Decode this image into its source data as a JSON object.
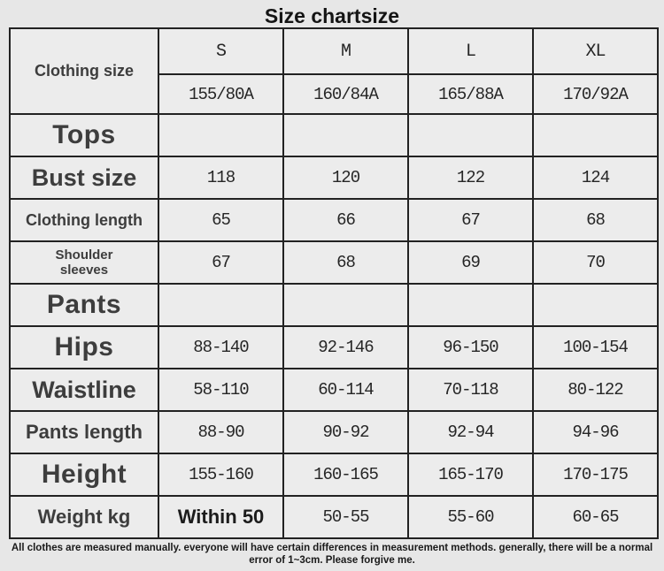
{
  "title": "Size chartsize",
  "table": {
    "corner_label": "Clothing size",
    "size_headers": [
      "S",
      "M",
      "L",
      "XL"
    ],
    "size_codes": [
      "155/80A",
      "160/84A",
      "165/88A",
      "170/92A"
    ],
    "rows": [
      {
        "label": "Tops",
        "values": [
          "",
          "",
          "",
          ""
        ]
      },
      {
        "label": "Bust size",
        "values": [
          "118",
          "120",
          "122",
          "124"
        ]
      },
      {
        "label": "Clothing length",
        "values": [
          "65",
          "66",
          "67",
          "68"
        ]
      },
      {
        "label": "Shoulder sleeves",
        "values": [
          "67",
          "68",
          "69",
          "70"
        ]
      },
      {
        "label": "Pants",
        "values": [
          "",
          "",
          "",
          ""
        ]
      },
      {
        "label": "Hips",
        "values": [
          "88-140",
          "92-146",
          "96-150",
          "100-154"
        ]
      },
      {
        "label": "Waistline",
        "values": [
          "58-110",
          "60-114",
          "70-118",
          "80-122"
        ]
      },
      {
        "label": "Pants length",
        "values": [
          "88-90",
          "90-92",
          "92-94",
          "94-96"
        ]
      },
      {
        "label": "Height",
        "values": [
          "155-160",
          "160-165",
          "165-170",
          "170-175"
        ]
      },
      {
        "label": "Weight kg",
        "values": [
          "Within 50",
          "50-55",
          "55-60",
          "60-65"
        ]
      }
    ]
  },
  "footer_line": "All clothes are measured manually. everyone will have certain differences in measurement methods. generally, there will be a normal error of 1~3cm. Please forgive me.",
  "colors": {
    "background": "#e7e7e7",
    "cell_background": "#ececec",
    "border": "#222222",
    "label_text": "#3d3d3d",
    "value_text": "#262626"
  }
}
